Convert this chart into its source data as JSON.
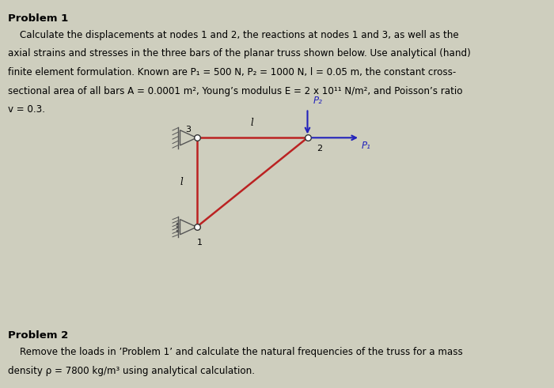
{
  "bg_color": "#cecebe",
  "title1": "Problem 1",
  "text1_line1": "    Calculate the displacements at nodes 1 and 2, the reactions at nodes 1 and 3, as well as the",
  "text1_line2": "axial strains and stresses in the three bars of the planar truss shown below. Use analytical (hand)",
  "text1_line3": "finite element formulation. Known are P₁ = 500 N, P₂ = 1000 N, l = 0.05 m, the constant cross-",
  "text1_line4": "sectional area of all bars A = 0.0001 m², Young’s modulus E = 2 x 10¹¹ N/m², and Poisson’s ratio",
  "text1_line5": "v = 0.3.",
  "title2": "Problem 2",
  "text2_line1": "    Remove the loads in ’Problem 1’ and calculate the natural frequencies of the truss for a mass",
  "text2_line2": "density ρ = 7800 kg/m³ using analytical calculation.",
  "bar_color": "#bb2222",
  "arrow_color": "#2222bb",
  "support_color": "#555555",
  "node_color": "white",
  "node_edge_color": "#333333",
  "n1": [
    0.355,
    0.415
  ],
  "n2": [
    0.555,
    0.645
  ],
  "n3": [
    0.355,
    0.645
  ],
  "lw_bar": 1.8,
  "fontsize_text": 8.6,
  "fontsize_label": 8.0,
  "fontsize_title": 9.5
}
